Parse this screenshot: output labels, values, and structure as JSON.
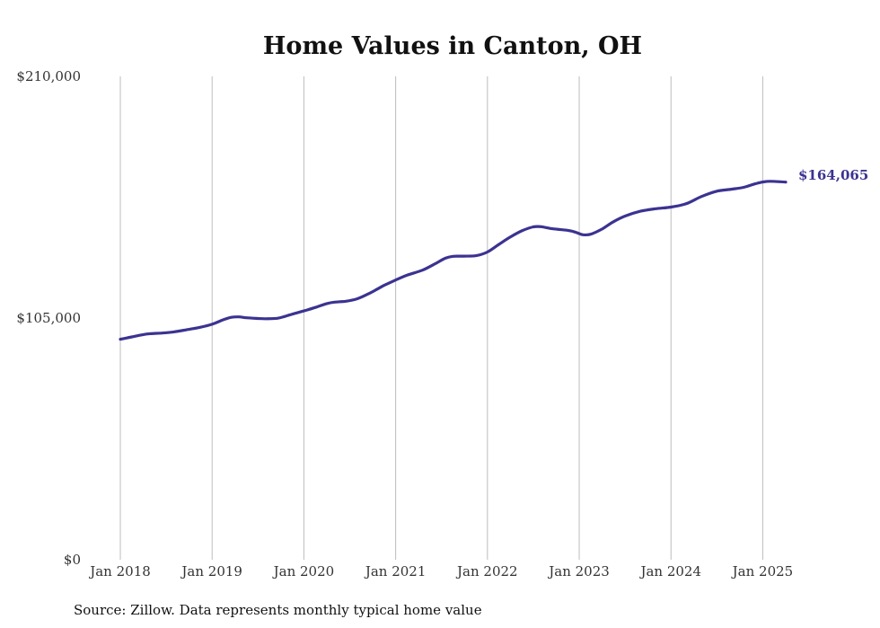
{
  "chart_data": {
    "type": "line",
    "title": "Home Values in Canton, OH",
    "xlabel": "",
    "ylabel": "",
    "source": "Source: Zillow. Data represents monthly typical home value",
    "x_ticks": [
      "Jan 2018",
      "Jan 2019",
      "Jan 2020",
      "Jan 2021",
      "Jan 2022",
      "Jan 2023",
      "Jan 2024",
      "Jan 2025"
    ],
    "x_tick_values": [
      2018,
      2019,
      2020,
      2021,
      2022,
      2023,
      2024,
      2025
    ],
    "xlim": [
      2018,
      2025.25
    ],
    "y_ticks": [
      "$0",
      "$105,000",
      "$210,000"
    ],
    "y_tick_values": [
      0,
      105000,
      210000
    ],
    "ylim": [
      0,
      210000
    ],
    "grid": "vertical",
    "line_color": "#3b3391",
    "end_label": "$164,065",
    "series": [
      {
        "x": [
          2018.0,
          2018.125,
          2018.25,
          2018.333,
          2018.458,
          2018.583,
          2018.75,
          2018.875,
          2019.0,
          2019.125,
          2019.208,
          2019.292,
          2019.375,
          2019.5,
          2019.583,
          2019.708,
          2019.792,
          2019.875,
          2020.0,
          2020.125,
          2020.25,
          2020.333,
          2020.458,
          2020.583,
          2020.708,
          2020.792,
          2020.875,
          2021.0,
          2021.125,
          2021.292,
          2021.417,
          2021.542,
          2021.625,
          2021.75,
          2021.875,
          2022.0,
          2022.125,
          2022.25,
          2022.375,
          2022.5,
          2022.583,
          2022.708,
          2022.875,
          2022.958,
          2023.042,
          2023.125,
          2023.25,
          2023.375,
          2023.5,
          2023.667,
          2023.833,
          2024.0,
          2024.167,
          2024.333,
          2024.5,
          2024.667,
          2024.792,
          2024.917,
          2025.0,
          2025.083,
          2025.25
        ],
        "values": [
          95800,
          96800,
          97800,
          98200,
          98500,
          99000,
          100100,
          101000,
          102300,
          104300,
          105300,
          105500,
          105100,
          104800,
          104700,
          104900,
          105700,
          106700,
          108100,
          109600,
          111300,
          111900,
          112300,
          113400,
          115600,
          117400,
          119200,
          121500,
          123600,
          125800,
          128300,
          131000,
          131800,
          131900,
          132100,
          133700,
          137000,
          140200,
          142900,
          144600,
          144700,
          143800,
          143100,
          142300,
          141200,
          141400,
          143700,
          146900,
          149300,
          151400,
          152500,
          153200,
          154700,
          157800,
          160100,
          161000,
          161800,
          163300,
          164100,
          164400,
          164065
        ]
      }
    ]
  }
}
